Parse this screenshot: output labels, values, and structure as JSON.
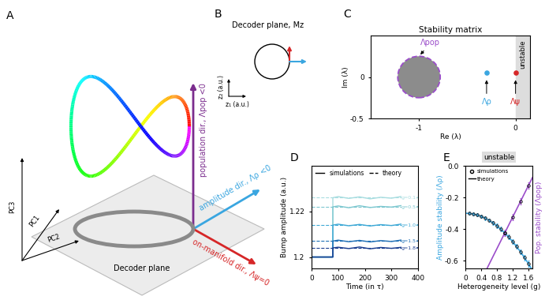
{
  "panel_labels": [
    "A",
    "B",
    "C",
    "D",
    "E"
  ],
  "diagram_A": {
    "axis_labels": [
      "PC1",
      "PC2",
      "PC3"
    ],
    "plane_label": "Decoder plane",
    "directions": [
      {
        "label": "population dir., Λpop <0",
        "color": "#7b2d8e"
      },
      {
        "label": "amplitude dir., Λρ <0",
        "color": "#3aa6e0"
      },
      {
        "label": "on-manifold dir., Λψ=0",
        "color": "#d62728"
      }
    ]
  },
  "diagram_B": {
    "title": "Decoder plane, Mz",
    "xlabel": "z₁ (a.u.)",
    "ylabel": "z₂ (a.u.)"
  },
  "chart_data": [
    {
      "type": "scatter",
      "title": "Stability matrix",
      "xlabel": "Re (λ)",
      "ylabel": "Im (λ)",
      "xlim": [
        -1.5,
        0.15
      ],
      "ylim": [
        -0.5,
        0.5
      ],
      "xticks": [
        -1,
        0
      ],
      "yticks": [
        -0.5,
        0
      ],
      "unstable_region": {
        "label": "unstable",
        "from": 0
      },
      "bulk": {
        "name": "Λpop",
        "center": [
          -1.0,
          0.0
        ],
        "radius_re": 0.22,
        "radius_im": 0.25,
        "color": "#9b4dca"
      },
      "series": [
        {
          "name": "Λρ",
          "color": "#3aa6e0",
          "x": [
            -0.3
          ],
          "values": [
            0.05
          ]
        },
        {
          "name": "Λψ",
          "color": "#d62728",
          "x": [
            0
          ],
          "values": [
            0.05
          ]
        }
      ]
    },
    {
      "type": "line",
      "xlabel": "Time (in τ)",
      "ylabel": "Bump amplitude (a.u.)",
      "xlim": [
        0,
        400
      ],
      "ylim": [
        1.195,
        1.24
      ],
      "xticks": [
        0,
        100,
        200,
        300,
        400
      ],
      "yticks": [
        1.2,
        1.22
      ],
      "legend": "upper left",
      "legend_entries": [
        {
          "label": "simulations",
          "line_style": "solid"
        },
        {
          "label": "theory",
          "line_style": "dashed"
        }
      ],
      "x": [
        0,
        80,
        80,
        100,
        140,
        180,
        220,
        260,
        300,
        340,
        380,
        400
      ],
      "series": [
        {
          "name": "g=0.1",
          "color": "#a8dde0",
          "theory": 1.226,
          "values": [
            1.2,
            1.2,
            1.226,
            1.2265,
            1.2257,
            1.2264,
            1.2255,
            1.2262,
            1.2258,
            1.2266,
            1.2256,
            1.2261
          ]
        },
        {
          "name": "g=0.5",
          "color": "#7ec8d0",
          "theory": 1.222,
          "values": [
            1.2,
            1.2,
            1.222,
            1.2224,
            1.2216,
            1.2225,
            1.2217,
            1.2222,
            1.2219,
            1.2226,
            1.2215,
            1.2221
          ]
        },
        {
          "name": "g=1.0",
          "color": "#3fa9d6",
          "theory": 1.214,
          "values": [
            1.2,
            1.2,
            1.214,
            1.2144,
            1.2137,
            1.2143,
            1.2136,
            1.2142,
            1.2138,
            1.2145,
            1.2136,
            1.2141
          ]
        },
        {
          "name": "g=1.5",
          "color": "#1f6fb5",
          "theory": 1.207,
          "values": [
            1.2,
            1.2,
            1.207,
            1.2074,
            1.2067,
            1.2073,
            1.2066,
            1.2072,
            1.2068,
            1.2075,
            1.2066,
            1.2071
          ]
        },
        {
          "name": "g=1.8",
          "color": "#1a3d8f",
          "theory": 1.204,
          "values": [
            1.2,
            1.2,
            1.204,
            1.2043,
            1.2037,
            1.2044,
            1.2036,
            1.2042,
            1.2038,
            1.2043,
            1.2037,
            1.2041
          ]
        }
      ]
    },
    {
      "type": "line",
      "xlabel": "Heterogeneity level (g)",
      "ylabel": "Amplitude stability (Λρ)",
      "y2label": "Pop. stability (Λpop)",
      "unstable_label": "unstable",
      "xlim": [
        0,
        1.7
      ],
      "ylim": [
        -0.65,
        0.0
      ],
      "xticks": [
        0,
        0.4,
        0.8,
        1.2,
        1.6
      ],
      "yticks": [
        {
          "value": 0.0,
          "label": "0.0"
        },
        -0.2,
        -0.4,
        -0.6
      ],
      "legend": "upper left",
      "legend_entries": [
        {
          "label": "simulations",
          "marker": "o"
        },
        {
          "label": "theory",
          "line_style": "solid"
        }
      ],
      "series": [
        {
          "color": "#3aa6e0",
          "theory_x": [
            0,
            0.2,
            0.4,
            0.6,
            0.8,
            1.0,
            1.2,
            1.4,
            1.6,
            1.7
          ],
          "theory_values": [
            -0.3,
            -0.305,
            -0.32,
            -0.345,
            -0.38,
            -0.425,
            -0.48,
            -0.545,
            -0.62,
            -0.661
          ],
          "x": [
            0.1,
            0.2,
            0.3,
            0.4,
            0.5,
            0.6,
            0.7,
            0.8,
            0.9,
            1.0,
            1.1,
            1.2,
            1.3,
            1.4,
            1.5,
            1.6
          ],
          "values": [
            -0.301,
            -0.305,
            -0.311,
            -0.32,
            -0.331,
            -0.345,
            -0.361,
            -0.38,
            -0.401,
            -0.425,
            -0.451,
            -0.48,
            -0.511,
            -0.545,
            -0.581,
            -0.62
          ],
          "errors": [
            0.01,
            0.01,
            0.01,
            0.012,
            0.012,
            0.012,
            0.012,
            0.014,
            0.014,
            0.014,
            0.015,
            0.015,
            0.016,
            0.016,
            0.018,
            0.018
          ]
        },
        {
          "color": "#9b4dca",
          "theory_x": [
            0.5,
            1.7
          ],
          "theory_values": [
            -0.675,
            -0.075
          ],
          "x": [
            1.0,
            1.2,
            1.4,
            1.6
          ],
          "values": [
            -0.425,
            -0.325,
            -0.225,
            -0.125
          ],
          "errors": [
            0.02,
            0.02,
            0.02,
            0.02
          ]
        }
      ]
    }
  ]
}
